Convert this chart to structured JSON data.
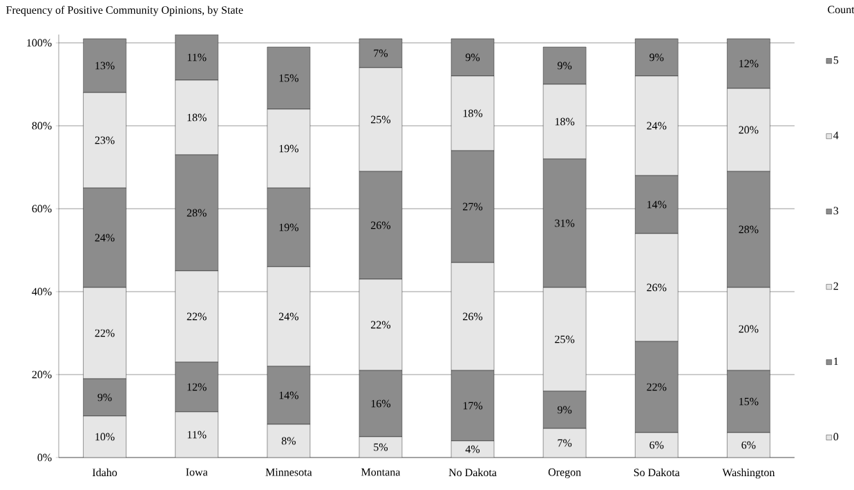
{
  "chart_data": {
    "type": "bar",
    "stacked": true,
    "title": "Frequency of Positive Community Opinions, by State",
    "legend_title": "Count",
    "categories": [
      "Idaho",
      "Iowa",
      "Minnesota",
      "Montana",
      "No Dakota",
      "Oregon",
      "So Dakota",
      "Washington"
    ],
    "ylim": [
      0,
      102
    ],
    "yticks": [
      {
        "value": 0,
        "label": "0%"
      },
      {
        "value": 20,
        "label": "20%"
      },
      {
        "value": 40,
        "label": "40%"
      },
      {
        "value": 60,
        "label": "60%"
      },
      {
        "value": 80,
        "label": "80%"
      },
      {
        "value": 100,
        "label": "100%"
      }
    ],
    "grid": "y",
    "legend": "right",
    "series": [
      {
        "name": "0",
        "color": "#e6e6e6",
        "values": [
          10,
          11,
          8,
          5,
          4,
          7,
          6,
          6
        ],
        "value_labels": [
          "10%",
          "11%",
          "8%",
          "5%",
          "4%",
          "7%",
          "6%",
          "6%"
        ]
      },
      {
        "name": "1",
        "color": "#8c8c8c",
        "values": [
          9,
          12,
          14,
          16,
          17,
          9,
          22,
          15
        ],
        "value_labels": [
          "9%",
          "12%",
          "14%",
          "16%",
          "17%",
          "9%",
          "22%",
          "15%"
        ]
      },
      {
        "name": "2",
        "color": "#e6e6e6",
        "values": [
          22,
          22,
          24,
          22,
          26,
          25,
          26,
          20
        ],
        "value_labels": [
          "22%",
          "22%",
          "24%",
          "22%",
          "26%",
          "25%",
          "26%",
          "20%"
        ]
      },
      {
        "name": "3",
        "color": "#8c8c8c",
        "values": [
          24,
          28,
          19,
          26,
          27,
          31,
          14,
          28
        ],
        "value_labels": [
          "24%",
          "28%",
          "19%",
          "26%",
          "27%",
          "31%",
          "14%",
          "28%"
        ]
      },
      {
        "name": "4",
        "color": "#e6e6e6",
        "values": [
          23,
          18,
          19,
          25,
          18,
          18,
          24,
          20
        ],
        "value_labels": [
          "23%",
          "18%",
          "19%",
          "25%",
          "18%",
          "18%",
          "24%",
          "20%"
        ]
      },
      {
        "name": "5",
        "color": "#8c8c8c",
        "values": [
          13,
          11,
          15,
          7,
          9,
          9,
          9,
          12
        ],
        "value_labels": [
          "13%",
          "11%",
          "15%",
          "7%",
          "9%",
          "9%",
          "9%",
          "12%"
        ]
      }
    ]
  }
}
